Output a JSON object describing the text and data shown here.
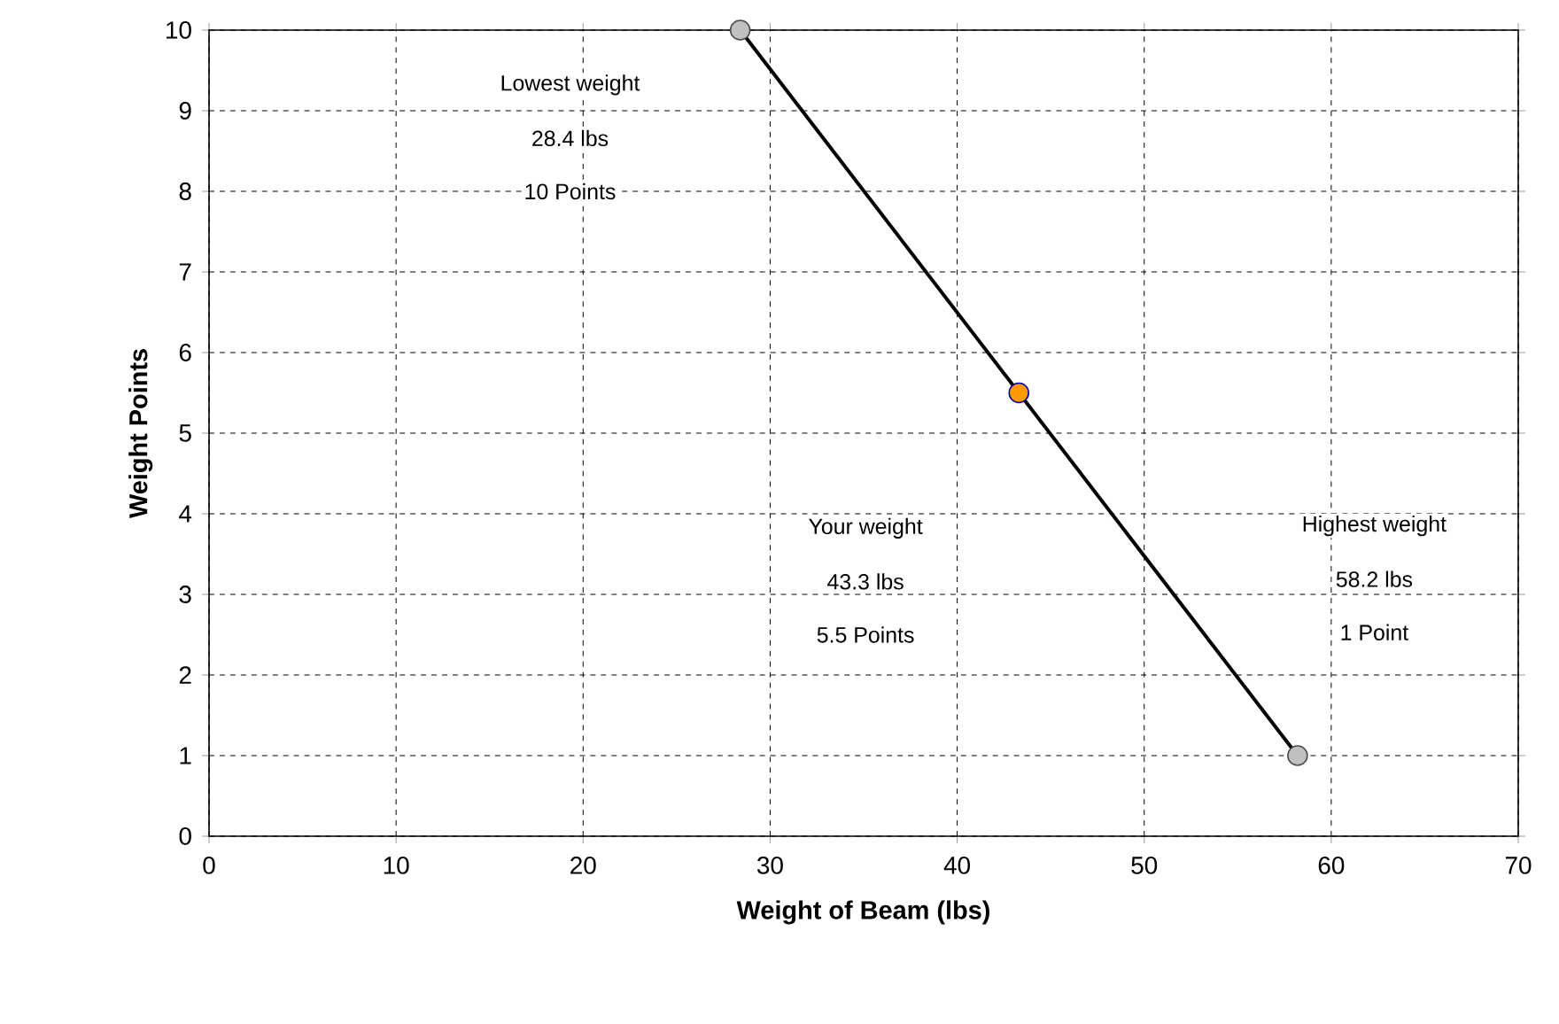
{
  "chart_data": {
    "type": "line",
    "xlabel": "Weight of Beam (lbs)",
    "ylabel": "Weight Points",
    "xlim": [
      0,
      70
    ],
    "ylim": [
      0,
      10
    ],
    "xticks": [
      0,
      10,
      20,
      30,
      40,
      50,
      60,
      70
    ],
    "yticks": [
      0,
      1,
      2,
      3,
      4,
      5,
      6,
      7,
      8,
      9,
      10
    ],
    "grid": true,
    "series": [
      {
        "color": "#000000",
        "x": [
          28.4,
          58.2
        ],
        "values": [
          10,
          1
        ],
        "line_style": "solid"
      },
      {
        "type": "scatter",
        "color": "#c0c0c0",
        "x": [
          28.4,
          58.2
        ],
        "values": [
          10,
          1
        ],
        "marker": "circle"
      },
      {
        "type": "scatter",
        "color": "#ff9900",
        "x": [
          43.3
        ],
        "values": [
          5.5
        ],
        "marker": "circle"
      }
    ],
    "annotations": [
      "Lowest weight",
      "28.4 lbs",
      "10 Points",
      "Your weight",
      "43.3 lbs",
      "5.5 Points",
      "Highest weight",
      "58.2 lbs",
      "1 Point"
    ]
  }
}
